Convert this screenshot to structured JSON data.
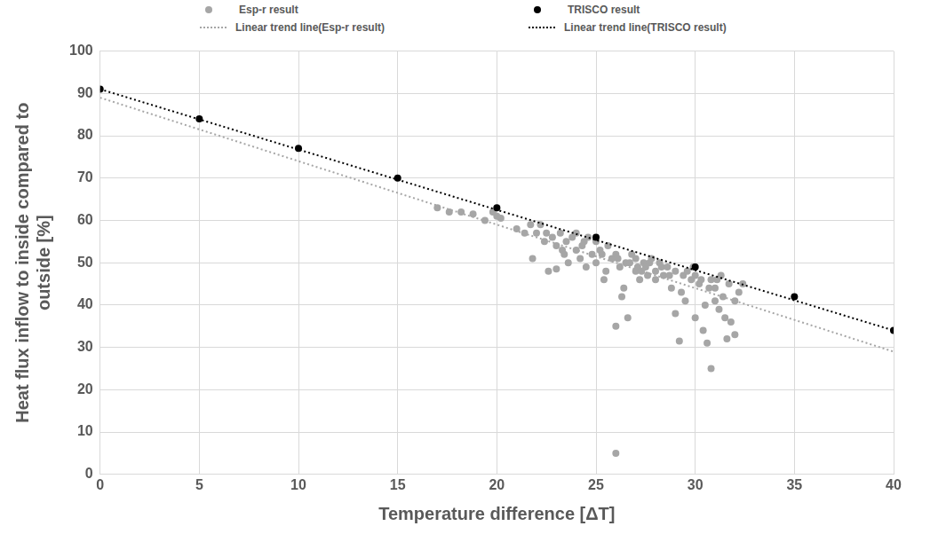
{
  "chart_data": {
    "type": "scatter",
    "x_label": "Temperature difference [ΔT]",
    "y_label": [
      "Heat flux inflow to inside compared to",
      "outside [%]"
    ],
    "xlim": [
      0,
      40
    ],
    "xticks": [
      0,
      5,
      10,
      15,
      20,
      25,
      30,
      35,
      40
    ],
    "ylim": [
      0,
      100
    ],
    "yticks": [
      0,
      10,
      20,
      30,
      40,
      50,
      60,
      70,
      80,
      90,
      100
    ],
    "grid": true,
    "legend": "top",
    "series": [
      {
        "name": "Esp-r result",
        "type": "scatter",
        "color": "#a6a6a6",
        "marker": "circle",
        "x": [
          17,
          17.6,
          18.2,
          18.8,
          19.4,
          19.8,
          20,
          20.2,
          21,
          21.4,
          21.7,
          21.8,
          22,
          22.2,
          22.4,
          22.5,
          22.6,
          22.8,
          23,
          23,
          23.2,
          23.3,
          23.4,
          23.5,
          23.6,
          23.8,
          24,
          24,
          24.2,
          24.3,
          24.4,
          24.5,
          24.6,
          24.8,
          25,
          25,
          25.2,
          25.3,
          25.4,
          25.5,
          25.6,
          25.8,
          26,
          26,
          26,
          26.1,
          26.2,
          26.3,
          26.4,
          26.5,
          26.6,
          26.7,
          26.8,
          27,
          27,
          27.1,
          27.2,
          27.3,
          27.4,
          27.5,
          27.6,
          27.7,
          27.8,
          28,
          28,
          28.2,
          28.3,
          28.4,
          28.6,
          28.7,
          28.8,
          29,
          29,
          29.2,
          29.3,
          29.4,
          29.5,
          29.6,
          29.8,
          29.9,
          30,
          30,
          30.2,
          30.3,
          30.4,
          30.5,
          30.6,
          30.7,
          30.8,
          30.8,
          31,
          31,
          31.1,
          31.2,
          31.3,
          31.4,
          31.5,
          31.6,
          31.7,
          31.8,
          32,
          32,
          32.2,
          32.4
        ],
        "values": [
          63,
          62,
          62,
          61.5,
          60,
          62,
          61,
          60.5,
          58,
          57,
          59,
          51,
          57,
          59,
          55,
          57,
          48,
          56,
          54,
          48.5,
          57,
          53,
          52,
          55,
          50,
          56,
          53,
          57,
          51,
          54,
          55,
          49,
          56,
          52,
          55,
          50,
          53,
          52,
          46,
          48,
          54,
          51,
          52,
          35,
          5,
          51,
          49,
          42,
          44,
          50,
          37,
          50,
          52,
          48,
          51,
          49,
          46,
          48,
          50,
          49,
          47,
          50,
          51,
          48,
          46,
          50,
          49,
          47,
          49,
          47,
          44,
          48,
          38,
          31.5,
          43,
          47,
          41,
          48,
          46,
          49,
          47,
          37,
          45,
          46,
          34,
          40,
          31,
          44,
          25,
          46,
          41,
          44,
          46,
          39,
          47,
          42,
          37,
          32,
          45,
          36,
          33,
          41,
          43,
          45
        ]
      },
      {
        "name": "TRISCO result",
        "type": "scatter",
        "color": "#000000",
        "marker": "circle",
        "x": [
          0,
          5,
          10,
          15,
          20,
          25,
          30,
          35,
          40
        ],
        "values": [
          91,
          84,
          77,
          70,
          63,
          56,
          49,
          42,
          34
        ]
      },
      {
        "name": "Linear trend line(Esp-r result)",
        "type": "line",
        "color": "#a6a6a6",
        "line_style": "dotted",
        "x": [
          0,
          40
        ],
        "values": [
          89,
          29
        ]
      },
      {
        "name": "Linear trend line(TRISCO result)",
        "type": "line",
        "color": "#000000",
        "line_style": "dotted",
        "x": [
          0,
          40
        ],
        "values": [
          91,
          34
        ]
      }
    ]
  }
}
